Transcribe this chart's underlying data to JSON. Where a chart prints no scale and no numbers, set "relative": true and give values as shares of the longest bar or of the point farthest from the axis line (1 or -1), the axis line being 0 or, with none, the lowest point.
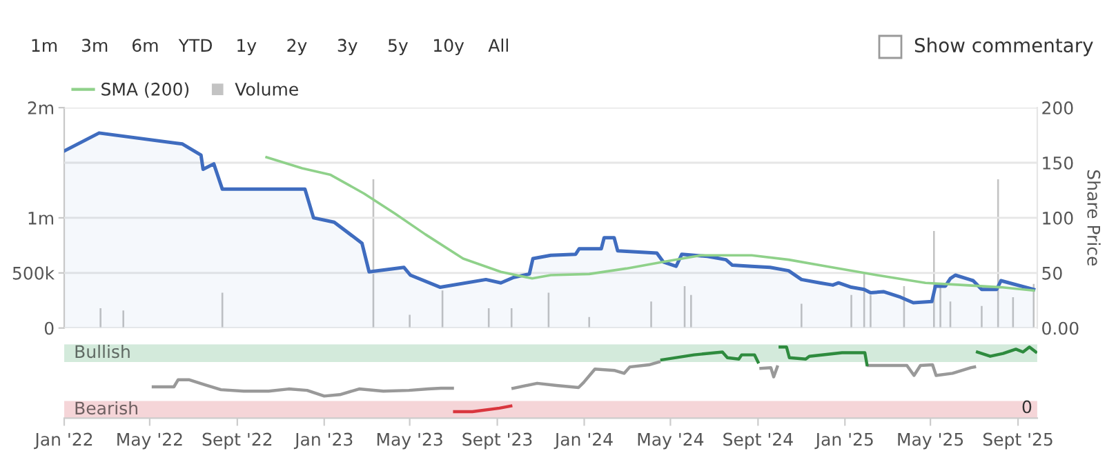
{
  "chart_data": [
    {
      "type": "line",
      "annotations": [
        "1m",
        "3m",
        "6m",
        "YTD",
        "1y",
        "2y",
        "3y",
        "5y",
        "10y",
        "All",
        "Show commentary"
      ],
      "xlim": [
        "2022-01-01",
        "2025-09-28"
      ],
      "ylim": [
        0,
        200
      ],
      "yticks": [
        {
          "value": 0,
          "label": "0.00"
        },
        50,
        100,
        150,
        200
      ],
      "ylabel": "Share Price",
      "y2lim": [
        0,
        2000000
      ],
      "y2ticks": [
        0,
        {
          "value": 500000,
          "label": "500k"
        },
        {
          "value": 1000000,
          "label": "1m"
        },
        {
          "value": 2000000,
          "label": "2m"
        }
      ],
      "grid": "y",
      "legend": "top left",
      "tick_labels": "y",
      "series": [
        {
          "type": "area",
          "color": "#3f6cbf",
          "x": [
            "2022-01-02",
            "2022-02-19",
            "2022-06-16",
            "2022-07-12",
            "2022-07-15",
            "2022-07-30",
            "2022-08-11",
            "2022-12-05",
            "2022-12-17",
            "2023-01-15",
            "2023-02-23",
            "2023-03-05",
            "2023-04-23",
            "2023-05-02",
            "2023-06-13",
            "2023-08-16",
            "2023-09-06",
            "2023-09-24",
            "2023-10-16",
            "2023-10-21",
            "2023-11-15",
            "2023-12-20",
            "2023-12-25",
            "2024-01-25",
            "2024-01-29",
            "2024-02-12",
            "2024-02-17",
            "2024-04-12",
            "2024-04-21",
            "2024-05-09",
            "2024-05-17",
            "2024-06-22",
            "2024-07-18",
            "2024-07-27",
            "2024-08-23",
            "2024-09-18",
            "2024-10-14",
            "2024-11-01",
            "2024-11-27",
            "2024-12-15",
            "2024-12-23",
            "2025-01-10",
            "2025-01-28",
            "2025-02-06",
            "2025-02-24",
            "2025-03-20",
            "2025-04-07",
            "2025-05-03",
            "2025-05-08",
            "2025-05-22",
            "2025-05-29",
            "2025-06-05",
            "2025-06-25",
            "2025-06-30",
            "2025-07-12",
            "2025-08-02",
            "2025-08-08",
            "2025-08-25",
            "2025-09-23"
          ],
          "values": [
            161,
            177,
            167,
            157,
            144,
            149,
            126,
            126,
            100,
            96,
            77,
            51,
            55,
            48,
            37,
            44,
            41,
            46,
            49,
            63,
            66,
            67,
            72,
            72,
            82,
            82,
            70,
            68,
            60,
            56,
            67,
            65,
            62,
            57,
            56,
            55,
            52,
            44,
            41,
            39,
            41,
            37,
            35,
            32,
            33,
            28,
            23,
            24,
            38,
            38,
            45,
            48,
            44,
            43,
            35,
            35,
            43,
            40,
            35
          ]
        },
        {
          "name": "SMA (200)",
          "type": "line",
          "color": "#8fd18a",
          "x": [
            "2022-10-12",
            "2022-12-01",
            "2023-01-10",
            "2023-02-26",
            "2023-04-10",
            "2023-05-23",
            "2023-07-15",
            "2023-09-06",
            "2023-10-20",
            "2023-11-15",
            "2024-01-08",
            "2024-02-29",
            "2024-04-21",
            "2024-06-13",
            "2024-08-23",
            "2024-10-14",
            "2024-12-06",
            "2025-02-15",
            "2025-04-24",
            "2025-06-16",
            "2025-08-08",
            "2025-09-23"
          ],
          "values": [
            155,
            145,
            139,
            122,
            104,
            85,
            63,
            51,
            45,
            48,
            49,
            54,
            60,
            66,
            66,
            62,
            56,
            48,
            41,
            39,
            37,
            34
          ]
        },
        {
          "name": "Volume",
          "type": "bar",
          "axis": "y2",
          "color": "#c3c3c3",
          "x": [
            "2022-02-21",
            "2022-03-25",
            "2022-08-11",
            "2023-03-11",
            "2023-05-01",
            "2023-06-16",
            "2023-08-20",
            "2023-09-21",
            "2023-11-12",
            "2024-01-08",
            "2024-04-04",
            "2024-05-21",
            "2024-05-30",
            "2024-11-01",
            "2025-01-10",
            "2025-01-28",
            "2025-02-06",
            "2025-03-25",
            "2025-05-06",
            "2025-05-15",
            "2025-05-29",
            "2025-07-12",
            "2025-08-04",
            "2025-08-25",
            "2025-09-23"
          ],
          "values": [
            180000,
            160000,
            320000,
            1350000,
            120000,
            340000,
            180000,
            180000,
            320000,
            100000,
            240000,
            380000,
            300000,
            220000,
            300000,
            500000,
            300000,
            380000,
            880000,
            380000,
            240000,
            200000,
            1350000,
            280000,
            400000
          ]
        }
      ]
    },
    {
      "type": "line",
      "relative": true,
      "annotations": [
        "0"
      ],
      "xlim": [
        "2022-01-01",
        "2025-09-28"
      ],
      "xticks": [
        {
          "value": "2022-01-01",
          "label": "Jan '22"
        },
        {
          "value": "2022-05-01",
          "label": "May '22"
        },
        {
          "value": "2022-09-01",
          "label": "Sept '22"
        },
        {
          "value": "2023-01-01",
          "label": "Jan '23"
        },
        {
          "value": "2023-05-01",
          "label": "May '23"
        },
        {
          "value": "2023-09-01",
          "label": "Sept '23"
        },
        {
          "value": "2024-01-01",
          "label": "Jan '24"
        },
        {
          "value": "2024-05-01",
          "label": "May '24"
        },
        {
          "value": "2024-09-01",
          "label": "Sept '24"
        },
        {
          "value": "2025-01-01",
          "label": "Jan '25"
        },
        {
          "value": "2025-05-01",
          "label": "May '25"
        },
        {
          "value": "2025-09-01",
          "label": "Sept '25"
        }
      ],
      "bands": [
        {
          "axis": "y",
          "from": 0.79,
          "to": 1.04,
          "label": "Bullish",
          "color": "#d3eadb"
        },
        {
          "axis": "y",
          "from": 0,
          "to": 0.24,
          "label": "Bearish",
          "color": "#f5d5d8"
        }
      ],
      "series": [
        {
          "color": "#999999",
          "x": [
            "2022-05-06",
            "2022-06-04",
            "2022-06-10",
            "2022-06-25",
            "2022-07-17",
            "2022-08-09",
            "2022-09-10",
            "2022-10-15",
            "2022-11-12",
            "2022-12-08",
            "2023-01-01",
            "2023-01-23",
            "2023-02-19",
            "2023-03-25",
            "2023-04-30",
            "2023-05-27",
            "2023-06-14",
            "2023-06-30",
            "2023-08-01",
            "2023-09-23",
            "2023-10-27",
            "2023-11-23",
            "2023-12-24",
            "2023-12-31",
            "2024-01-16",
            "2024-02-13",
            "2024-02-26",
            "2024-03-05",
            "2024-04-01",
            "2024-04-15",
            "2024-06-01",
            "2024-09-05",
            "2024-09-19",
            "2024-09-23",
            "2024-09-28",
            "2024-12-01",
            "2025-02-03",
            "2025-03-29",
            "2025-04-08",
            "2025-04-17",
            "2025-05-04",
            "2025-05-09",
            "2025-06-01",
            "2025-06-27",
            "2025-07-02"
          ],
          "values": [
            0.44,
            0.44,
            0.54,
            0.54,
            0.47,
            0.4,
            0.38,
            0.38,
            0.41,
            0.39,
            0.31,
            0.33,
            0.41,
            0.38,
            0.39,
            0.41,
            0.42,
            0.42,
            null,
            0.42,
            0.49,
            0.46,
            0.43,
            0.5,
            0.69,
            0.67,
            0.63,
            0.72,
            0.75,
            0.79,
            null,
            0.7,
            0.71,
            0.58,
            0.72,
            null,
            0.74,
            0.74,
            0.6,
            0.74,
            0.75,
            0.6,
            0.63,
            0.71,
            0.72
          ]
        },
        {
          "color": "#2e8b3e",
          "x": [
            "2024-04-19",
            "2024-06-03",
            "2024-07-13",
            "2024-07-20",
            "2024-08-05",
            "2024-08-09",
            "2024-08-27",
            "2024-09-01",
            "2024-09-15",
            "2024-10-02",
            "2024-10-11",
            "2024-10-15",
            "2024-11-07",
            "2024-11-12",
            "2024-12-28",
            "2025-01-29",
            "2025-02-01",
            "2025-05-01",
            "2025-07-06",
            "2025-07-24",
            "2025-08-11",
            "2025-08-29",
            "2025-09-08",
            "2025-09-17",
            "2025-09-26"
          ],
          "values": [
            0.82,
            0.89,
            0.93,
            0.85,
            0.83,
            0.89,
            0.89,
            0.79,
            null,
            1.0,
            1.0,
            0.85,
            0.83,
            0.87,
            0.92,
            0.92,
            0.75,
            null,
            0.93,
            0.87,
            0.91,
            0.97,
            0.93,
            1.0,
            0.93
          ]
        },
        {
          "color": "#d9363e",
          "x": [
            "2023-07-03",
            "2023-07-28",
            "2023-09-04",
            "2023-09-20"
          ],
          "values": [
            0.09,
            0.09,
            0.14,
            0.17
          ]
        }
      ]
    }
  ]
}
